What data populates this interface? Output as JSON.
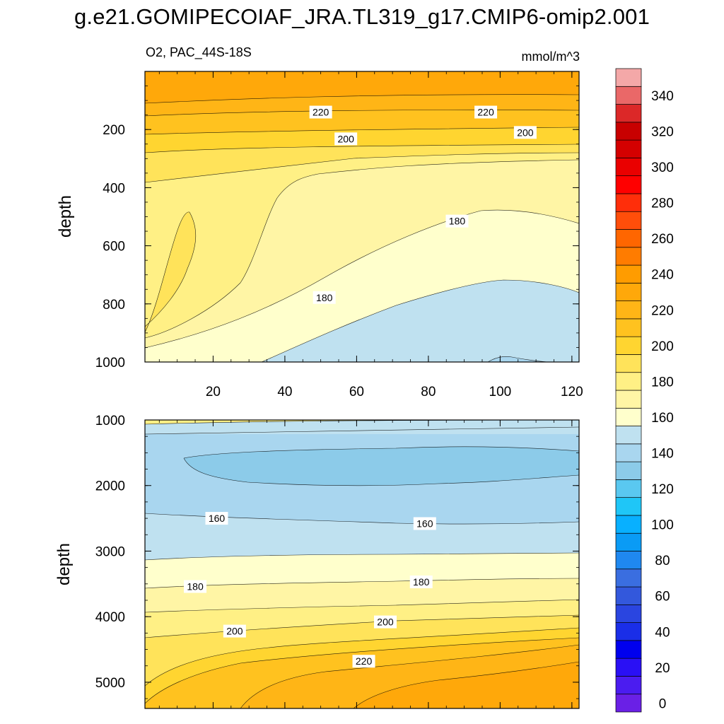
{
  "figure": {
    "title": "g.e21.GOMIPECOIAF_JRA.TL319_g17.CMIP6-omip2.001",
    "subtitle": "O2, PAC_44S-18S",
    "units": "mmol/m^3"
  },
  "chart_data": [
    {
      "type": "contour",
      "panel": "upper",
      "xlabel": "",
      "ylabel": "depth",
      "xlim": [
        1,
        122
      ],
      "ylim": [
        1000,
        0
      ],
      "xticks": [
        20,
        40,
        60,
        80,
        100,
        120
      ],
      "yticks": [
        200,
        400,
        600,
        800,
        1000
      ],
      "contour_labels": [
        {
          "text": "220",
          "x": 50,
          "y": 140
        },
        {
          "text": "220",
          "x": 96,
          "y": 140
        },
        {
          "text": "200",
          "x": 57,
          "y": 232
        },
        {
          "text": "200",
          "x": 107,
          "y": 210
        },
        {
          "text": "180",
          "x": 88,
          "y": 515
        },
        {
          "text": "180",
          "x": 51,
          "y": 778
        }
      ]
    },
    {
      "type": "contour",
      "panel": "lower",
      "xlabel": "",
      "ylabel": "depth",
      "xlim": [
        1,
        122
      ],
      "ylim": [
        5400,
        1000
      ],
      "xticks": [
        20,
        40,
        60,
        80,
        100,
        120
      ],
      "yticks": [
        1000,
        2000,
        3000,
        4000,
        5000
      ],
      "contour_labels": [
        {
          "text": "160",
          "x": 21,
          "y": 2500
        },
        {
          "text": "160",
          "x": 79,
          "y": 2580
        },
        {
          "text": "180",
          "x": 15,
          "y": 3540
        },
        {
          "text": "180",
          "x": 78,
          "y": 3470
        },
        {
          "text": "200",
          "x": 26,
          "y": 4220
        },
        {
          "text": "200",
          "x": 68,
          "y": 4080
        },
        {
          "text": "220",
          "x": 62,
          "y": 4680
        }
      ]
    }
  ],
  "colorbar": {
    "levels": [
      0,
      10,
      20,
      30,
      40,
      50,
      60,
      70,
      80,
      90,
      100,
      110,
      120,
      130,
      140,
      150,
      160,
      170,
      180,
      190,
      200,
      210,
      220,
      230,
      240,
      250,
      260,
      270,
      280,
      290,
      300,
      310,
      320,
      330,
      340,
      350
    ],
    "colors": [
      "#6a20e6",
      "#4b1cf0",
      "#2a10f5",
      "#0000ee",
      "#1a2ee8",
      "#2a45e0",
      "#3358dc",
      "#3a6ee0",
      "#1f88f0",
      "#0a9bf5",
      "#08b0ff",
      "#1fc6f7",
      "#5ac8f0",
      "#8ccbe9",
      "#a9d6ef",
      "#bfe1f0",
      "#ffffcc",
      "#fff5a5",
      "#fff085",
      "#ffe35a",
      "#ffd530",
      "#ffc21f",
      "#ffb516",
      "#ffa80a",
      "#ff9c00",
      "#ff7c00",
      "#ff6600",
      "#ff4e0a",
      "#ff2e0a",
      "#ff0000",
      "#ea0000",
      "#d40000",
      "#c80000",
      "#dc2828",
      "#ea6868",
      "#f4a8a8"
    ],
    "tick_labels": [
      "0",
      "20",
      "40",
      "60",
      "80",
      "100",
      "120",
      "140",
      "160",
      "180",
      "200",
      "220",
      "240",
      "260",
      "280",
      "300",
      "320",
      "340"
    ]
  }
}
